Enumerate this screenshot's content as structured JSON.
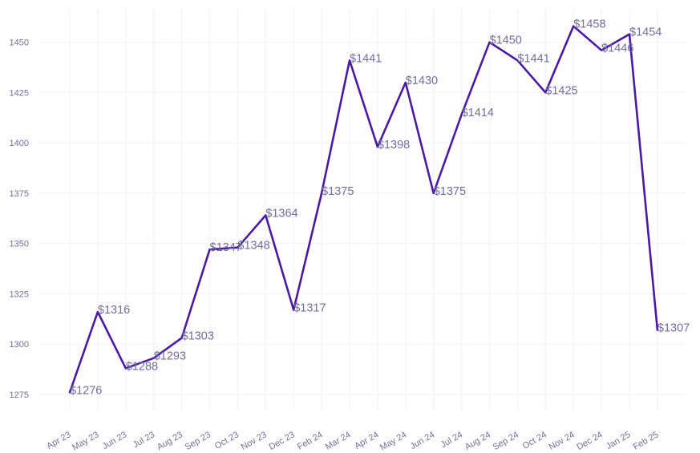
{
  "chart_data": {
    "type": "line",
    "title": "",
    "xlabel": "",
    "ylabel": "",
    "categories": [
      "Apr 23",
      "May 23",
      "Jun 23",
      "Jul 23",
      "Aug 23",
      "Sep 23",
      "Oct 23",
      "Nov 23",
      "Dec 23",
      "Feb 24",
      "Mar 24",
      "Apr 24",
      "May 24",
      "Jun 24",
      "Jul 24",
      "Aug 24",
      "Sep 24",
      "Oct 24",
      "Nov 24",
      "Dec 24",
      "Jan 25",
      "Feb 25"
    ],
    "values": [
      1276,
      1316,
      1288,
      1293,
      1303,
      1347,
      1348,
      1364,
      1317,
      1375,
      1441,
      1398,
      1430,
      1375,
      1414,
      1450,
      1441,
      1425,
      1458,
      1446,
      1454,
      1307
    ],
    "data_labels": [
      "$1276",
      "$1316",
      "$1288",
      "$1293",
      "$1303",
      "$1347",
      "$1348",
      "$1364",
      "$1317",
      "$1375",
      "$1441",
      "$1398",
      "$1430",
      "$1375",
      "$1414",
      "$1450",
      "$1441",
      "$1425",
      "$1458",
      "$1446",
      "$1454",
      "$1307"
    ],
    "y_ticks": [
      1275,
      1300,
      1325,
      1350,
      1375,
      1400,
      1425,
      1450
    ],
    "ylim": [
      1267,
      1467
    ],
    "grid": true,
    "legend": "none",
    "colors": {
      "line": "#4b1aa5",
      "text": "#6f6f9e",
      "grid": "#f5f5f8",
      "background": "#ffffff"
    }
  }
}
